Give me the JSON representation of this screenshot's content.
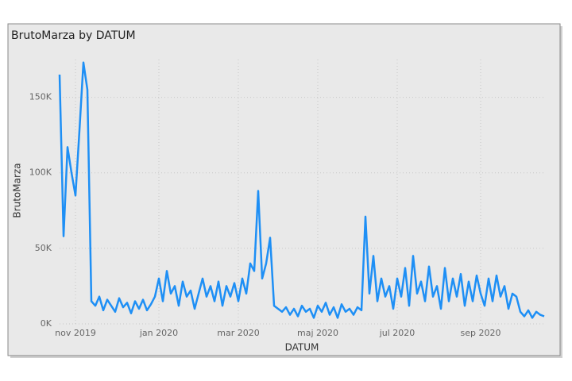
{
  "chart_data": {
    "type": "line",
    "title": "BrutoMarza by DATUM",
    "x_label": "DATUM",
    "y_label": "BrutoMarza",
    "series": [
      {
        "name": "BrutoMarza",
        "color": "#1e8ff5",
        "values": [
          165000,
          58000,
          117000,
          100000,
          85000,
          128000,
          173000,
          155000,
          15000,
          12000,
          18000,
          9000,
          16000,
          12000,
          8000,
          17000,
          11000,
          14000,
          7000,
          15000,
          10000,
          16000,
          9000,
          13000,
          18000,
          30000,
          15000,
          35000,
          20000,
          25000,
          12000,
          28000,
          18000,
          22000,
          10000,
          20000,
          30000,
          18000,
          25000,
          15000,
          28000,
          12000,
          25000,
          18000,
          27000,
          15000,
          30000,
          20000,
          40000,
          35000,
          88000,
          30000,
          40000,
          57000,
          12000,
          10000,
          8000,
          11000,
          6000,
          10000,
          5000,
          12000,
          8000,
          10000,
          4000,
          12000,
          8000,
          14000,
          6000,
          11000,
          4000,
          13000,
          8000,
          10000,
          6000,
          11000,
          9000,
          71000,
          20000,
          45000,
          15000,
          30000,
          18000,
          25000,
          10000,
          30000,
          18000,
          37000,
          12000,
          45000,
          20000,
          28000,
          15000,
          38000,
          18000,
          25000,
          10000,
          37000,
          15000,
          30000,
          18000,
          33000,
          12000,
          28000,
          15000,
          32000,
          20000,
          12000,
          30000,
          15000,
          32000,
          18000,
          25000,
          10000,
          20000,
          18000,
          8000,
          5000,
          9000,
          4000,
          8000,
          6000,
          5000
        ]
      }
    ],
    "xlim": [
      0,
      122
    ],
    "xticks": [
      {
        "value": 4,
        "label": "nov 2019"
      },
      {
        "value": 25,
        "label": "jan 2020"
      },
      {
        "value": 45,
        "label": "mar 2020"
      },
      {
        "value": 65,
        "label": "maj 2020"
      },
      {
        "value": 85,
        "label": "jul 2020"
      },
      {
        "value": 106,
        "label": "sep 2020"
      }
    ],
    "ylim": [
      0,
      175000
    ],
    "yticks": [
      {
        "value": 0,
        "label": "0K"
      },
      {
        "value": 50000,
        "label": "50K"
      },
      {
        "value": 100000,
        "label": "100K"
      },
      {
        "value": 150000,
        "label": "150K"
      }
    ],
    "grid": true
  }
}
